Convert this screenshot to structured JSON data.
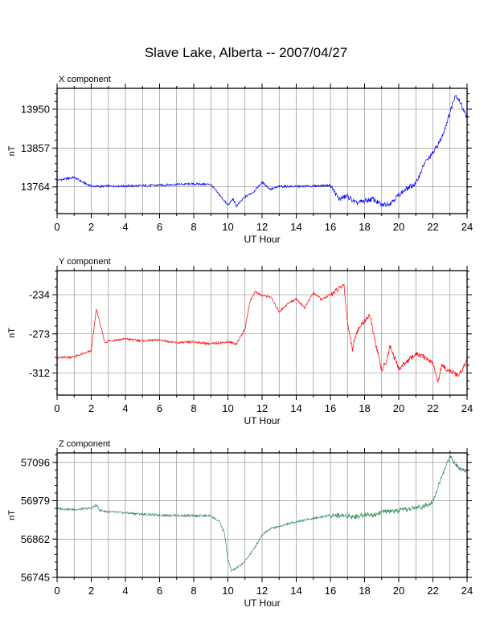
{
  "title": "Slave Lake, Alberta -- 2007/04/27",
  "chart_data": [
    {
      "type": "line",
      "title": "X component",
      "xlabel": "UT Hour",
      "ylabel": "nT",
      "color": "#0000ff",
      "xlim": [
        0,
        24
      ],
      "ylim": [
        13700,
        14000
      ],
      "x_ticks": [
        0,
        2,
        4,
        6,
        8,
        10,
        12,
        14,
        16,
        18,
        20,
        22,
        24
      ],
      "y_ticks": [
        13764,
        13857,
        13950
      ],
      "series": [
        {
          "x": [
            0,
            0.5,
            1,
            1.5,
            2,
            2.5,
            3,
            4,
            5,
            6,
            7,
            8,
            9,
            9.5,
            10,
            10.3,
            10.5,
            11,
            11.5,
            12,
            12.3,
            12.5,
            13,
            14,
            15,
            16,
            16.5,
            17,
            17.5,
            18,
            18.5,
            19,
            19.5,
            20,
            20.5,
            21,
            21.5,
            22,
            22.5,
            23,
            23.3,
            23.5,
            24
          ],
          "y": [
            13780,
            13783,
            13787,
            13775,
            13766,
            13765,
            13766,
            13766,
            13767,
            13768,
            13770,
            13771,
            13770,
            13745,
            13720,
            13735,
            13718,
            13740,
            13752,
            13775,
            13765,
            13758,
            13765,
            13765,
            13766,
            13768,
            13735,
            13742,
            13725,
            13730,
            13735,
            13720,
            13725,
            13745,
            13760,
            13772,
            13820,
            13845,
            13880,
            13942,
            13985,
            13975,
            13930
          ]
        }
      ]
    },
    {
      "type": "line",
      "title": "Y component",
      "xlabel": "UT Hour",
      "ylabel": "nT",
      "color": "#ff0000",
      "xlim": [
        0,
        24
      ],
      "ylim": [
        -334,
        -210
      ],
      "x_ticks": [
        0,
        2,
        4,
        6,
        8,
        10,
        12,
        14,
        16,
        18,
        20,
        22,
        24
      ],
      "y_ticks": [
        -312,
        -273,
        -234
      ],
      "series": [
        {
          "x": [
            0,
            1,
            1.5,
            2,
            2.3,
            2.5,
            2.8,
            3,
            4,
            5,
            6,
            7,
            8,
            9,
            10,
            10.5,
            11,
            11.3,
            11.6,
            12,
            12.5,
            13,
            13.5,
            14,
            14.5,
            15,
            15.5,
            16,
            16.5,
            16.8,
            17,
            17.3,
            17.5,
            18,
            18.3,
            18.5,
            19,
            19.3,
            19.5,
            20,
            20.5,
            21,
            21.5,
            22,
            22.3,
            22.5,
            23,
            23.5,
            24
          ],
          "y": [
            -297,
            -296,
            -293,
            -290,
            -248,
            -262,
            -282,
            -280,
            -278,
            -280,
            -279,
            -282,
            -281,
            -283,
            -281,
            -283,
            -268,
            -240,
            -231,
            -235,
            -236,
            -251,
            -243,
            -238,
            -247,
            -232,
            -239,
            -234,
            -228,
            -224,
            -262,
            -288,
            -272,
            -260,
            -254,
            -271,
            -310,
            -298,
            -285,
            -308,
            -300,
            -293,
            -296,
            -302,
            -322,
            -305,
            -310,
            -315,
            -300
          ]
        }
      ]
    },
    {
      "type": "line",
      "title": "Z component",
      "xlabel": "UT Hour",
      "ylabel": "nT",
      "color": "#2e8b57",
      "xlim": [
        0,
        24
      ],
      "ylim": [
        56745,
        57125
      ],
      "x_ticks": [
        0,
        2,
        4,
        6,
        8,
        10,
        12,
        14,
        16,
        18,
        20,
        22,
        24
      ],
      "y_ticks": [
        56745,
        56862,
        56979,
        57096
      ],
      "series": [
        {
          "x": [
            0,
            1,
            2,
            2.3,
            2.5,
            3,
            4,
            5,
            6,
            7,
            8,
            9,
            9.5,
            9.8,
            10,
            10.2,
            10.4,
            10.7,
            11,
            11.5,
            12,
            12.5,
            13,
            13.5,
            14,
            15,
            16,
            17,
            17.5,
            18,
            18.5,
            19,
            20,
            21,
            21.5,
            22,
            22.5,
            23,
            23.5,
            24
          ],
          "y": [
            56955,
            56952,
            56956,
            56966,
            56950,
            56945,
            56942,
            56938,
            56935,
            56934,
            56933,
            56933,
            56915,
            56880,
            56800,
            56765,
            56770,
            56780,
            56795,
            56830,
            56875,
            56895,
            56900,
            56908,
            56915,
            56925,
            56935,
            56933,
            56930,
            56938,
            56935,
            56945,
            56948,
            56958,
            56962,
            56978,
            57050,
            57115,
            57080,
            57070
          ]
        }
      ]
    }
  ]
}
